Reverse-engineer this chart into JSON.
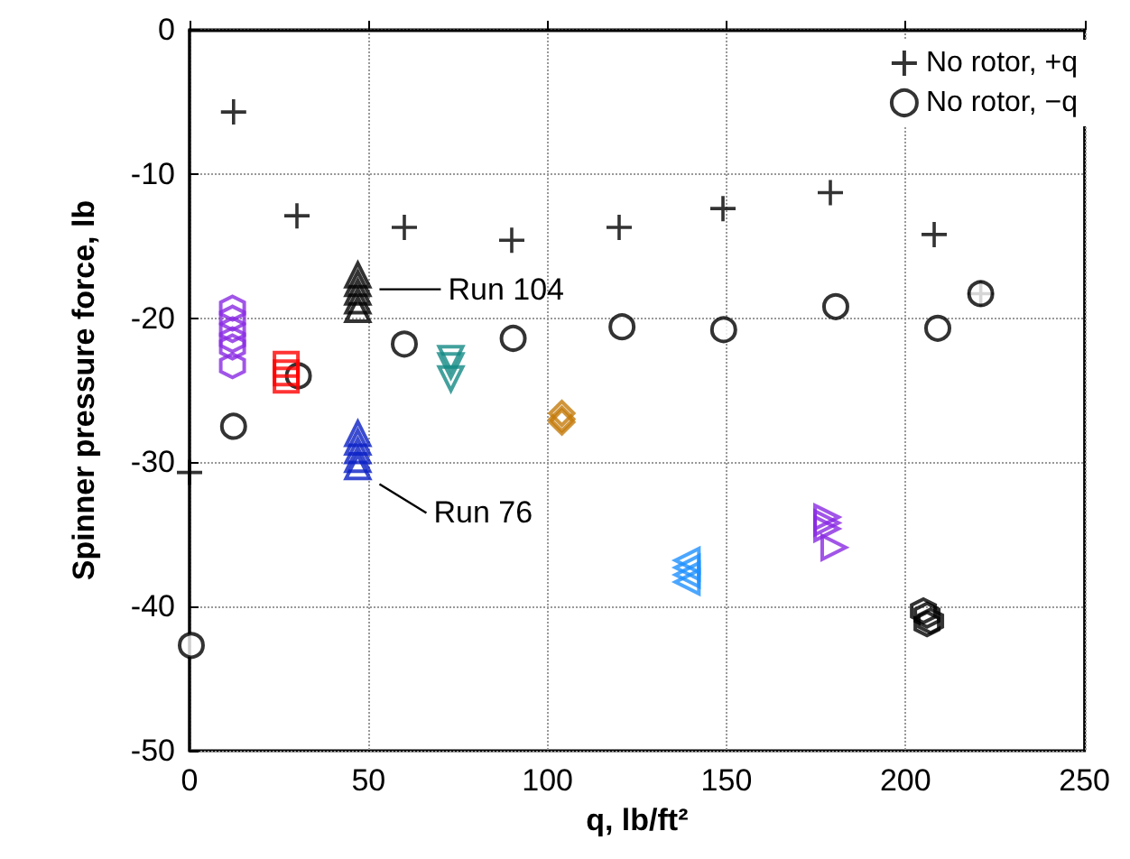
{
  "chart_data": {
    "type": "scatter",
    "xlabel": "q, lb/ft²",
    "ylabel": "Spinner pressure force, lb",
    "xlim": [
      0,
      250
    ],
    "xticks": [
      0,
      50,
      100,
      150,
      200,
      250
    ],
    "ylim": [
      -50,
      0
    ],
    "yticks": [
      -50,
      -40,
      -30,
      -20,
      -10,
      0
    ],
    "grid": true,
    "legend": "top right",
    "series": [
      {
        "name": "No rotor, +q",
        "color": "#000000",
        "marker": "cross",
        "x": [
          0,
          12.3,
          30,
          60,
          90,
          120,
          149,
          179,
          208,
          221
        ],
        "values": [
          -30.7,
          -5.7,
          -12.9,
          -13.7,
          -14.6,
          -13.7,
          -12.4,
          -11.3,
          -14.2,
          -18.3
        ]
      },
      {
        "name": "No rotor, −q",
        "color": "#000000",
        "marker": "circle",
        "x": [
          0.5,
          12.3,
          30.4,
          60,
          90.4,
          120.8,
          149.2,
          180.5,
          209,
          221
        ],
        "values": [
          -42.7,
          -27.5,
          -24,
          -21.8,
          -21.4,
          -20.6,
          -20.8,
          -19.2,
          -20.7,
          -18.3
        ]
      },
      {
        "color": "#8a2be2",
        "x": [
          12,
          12,
          12,
          12,
          12,
          12
        ],
        "values": [
          -19.3,
          -20,
          -20.8,
          -21.5,
          -22,
          -23.3
        ]
      },
      {
        "color": "#ff0000",
        "marker": "square",
        "x": [
          27,
          27,
          27
        ],
        "values": [
          -23.2,
          -23.8,
          -24.3
        ]
      },
      {
        "color": "#000000",
        "marker": "triangle",
        "x": [
          47,
          47,
          47,
          47,
          47
        ],
        "values": [
          -17,
          -17.6,
          -18.2,
          -18.8,
          -19.4
        ]
      },
      {
        "color": "#138a84",
        "marker": "triangle-down",
        "x": [
          73,
          73,
          73
        ],
        "values": [
          -22.8,
          -23.3,
          -24.2
        ]
      },
      {
        "color": "#0a1fc4",
        "marker": "triangle",
        "x": [
          47,
          47,
          47,
          47,
          47
        ],
        "values": [
          -28,
          -28.6,
          -29.2,
          -29.8,
          -30.3
        ]
      },
      {
        "color": "#c47a0a",
        "marker": "diamond",
        "x": [
          104,
          104,
          104
        ],
        "values": [
          -26.6,
          -27,
          -27.2
        ]
      },
      {
        "color": "#1e90ff",
        "marker": "triangle-left",
        "x": [
          139,
          139,
          139,
          139
        ],
        "values": [
          -36.8,
          -37.3,
          -37.8,
          -38.3
        ]
      },
      {
        "color": "#8a2be2",
        "marker": "triangle-right",
        "x": [
          178,
          178,
          178,
          180
        ],
        "values": [
          -33.8,
          -34.2,
          -34.6,
          -35.9
        ]
      },
      {
        "color": "#000000",
        "x": [
          205,
          206,
          207,
          206
        ],
        "values": [
          -40.3,
          -40.6,
          -41,
          -41.2
        ]
      }
    ],
    "annotations": [
      {
        "text": "Run 104",
        "x": 47,
        "y": -18
      },
      {
        "text": "Run 76",
        "x": 47,
        "y": -30
      }
    ]
  }
}
